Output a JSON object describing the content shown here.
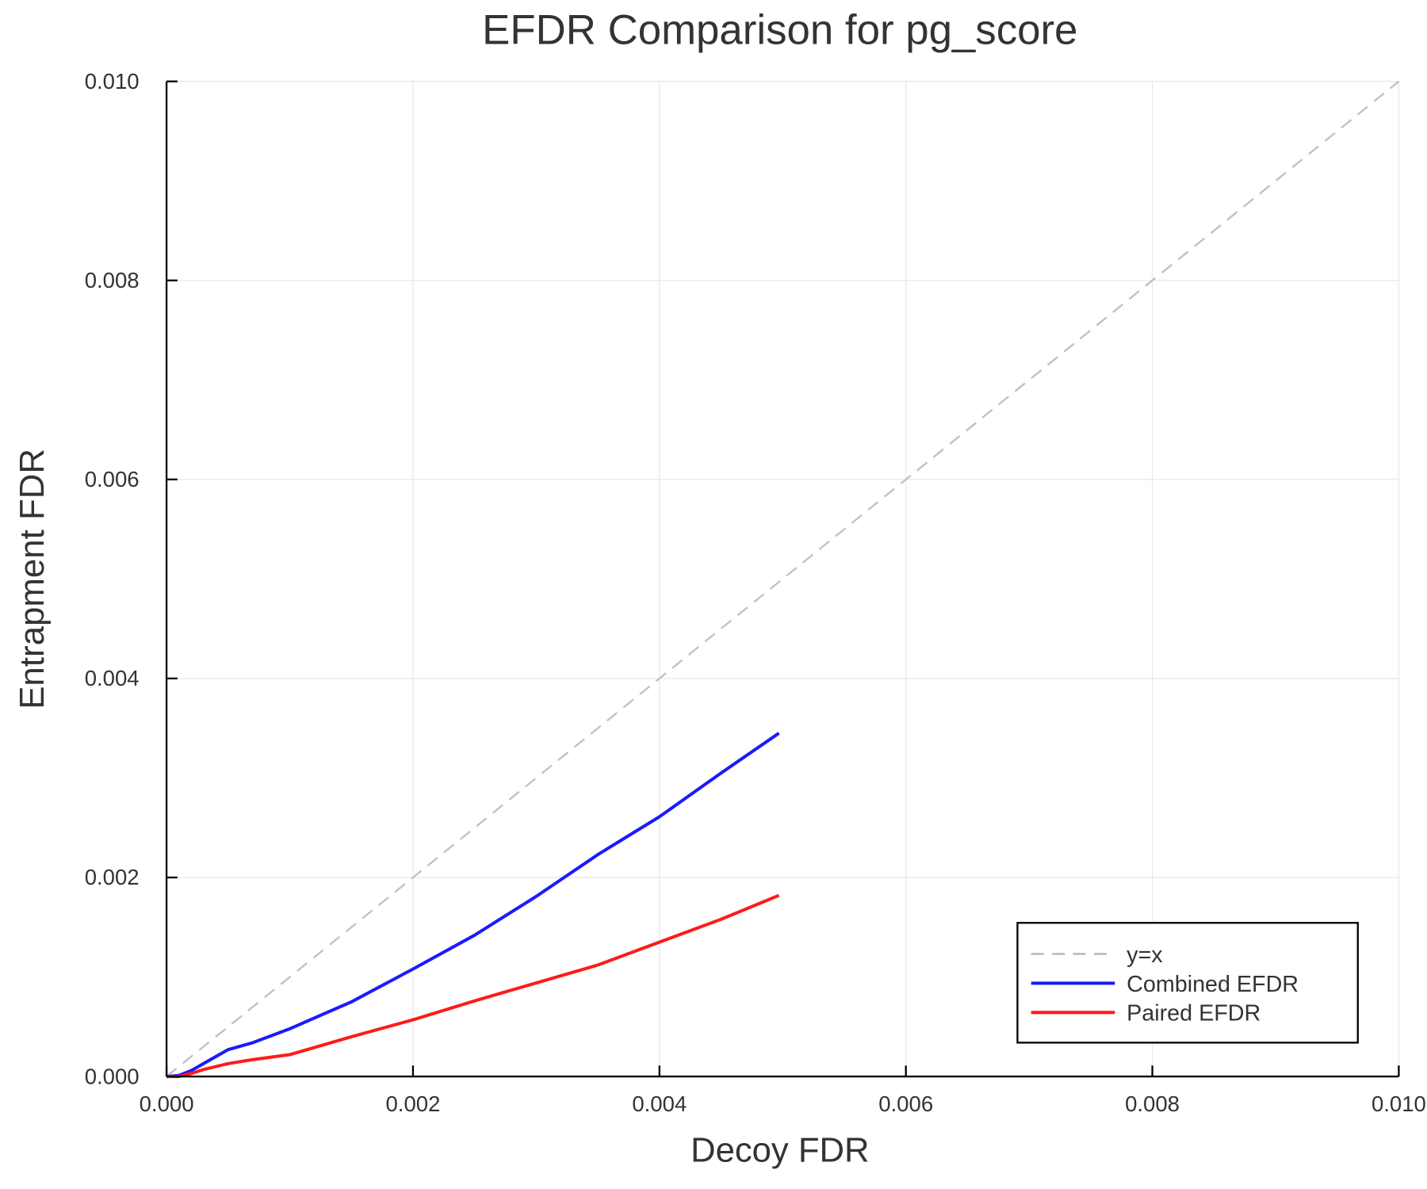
{
  "chart_data": {
    "type": "line",
    "title": "EFDR Comparison for pg_score",
    "xlabel": "Decoy FDR",
    "ylabel": "Entrapment FDR",
    "xlim": [
      0,
      0.01
    ],
    "ylim": [
      0,
      0.01
    ],
    "xticks": [
      "0.000",
      "0.002",
      "0.004",
      "0.006",
      "0.008",
      "0.010"
    ],
    "yticks": [
      "0.000",
      "0.002",
      "0.004",
      "0.006",
      "0.008",
      "0.010"
    ],
    "grid": true,
    "legend_position": "bottom-right",
    "series": [
      {
        "name": "y=x",
        "color": "#c0c0c0",
        "style": "dashed",
        "x": [
          0,
          0.01
        ],
        "y": [
          0,
          0.01
        ]
      },
      {
        "name": "Combined EFDR",
        "color": "#1a1aff",
        "style": "solid",
        "x": [
          0,
          0.0001,
          0.0002,
          0.0003,
          0.0005,
          0.0007,
          0.001,
          0.0015,
          0.002,
          0.0025,
          0.003,
          0.0035,
          0.004,
          0.0045,
          0.00497
        ],
        "y": [
          0,
          1e-05,
          6e-05,
          0.00013,
          0.00027,
          0.00034,
          0.00048,
          0.00075,
          0.00108,
          0.00142,
          0.00181,
          0.00223,
          0.00261,
          0.00305,
          0.00345
        ]
      },
      {
        "name": "Paired EFDR",
        "color": "#ff1a1a",
        "style": "solid",
        "x": [
          0,
          0.0001,
          0.0002,
          0.0003,
          0.0005,
          0.0007,
          0.001,
          0.0015,
          0.002,
          0.0025,
          0.003,
          0.0035,
          0.004,
          0.0045,
          0.00497
        ],
        "y": [
          0,
          0,
          3e-05,
          7e-05,
          0.00013,
          0.00017,
          0.00022,
          0.0004,
          0.00057,
          0.00076,
          0.00094,
          0.00112,
          0.00135,
          0.00158,
          0.00182
        ]
      }
    ]
  }
}
